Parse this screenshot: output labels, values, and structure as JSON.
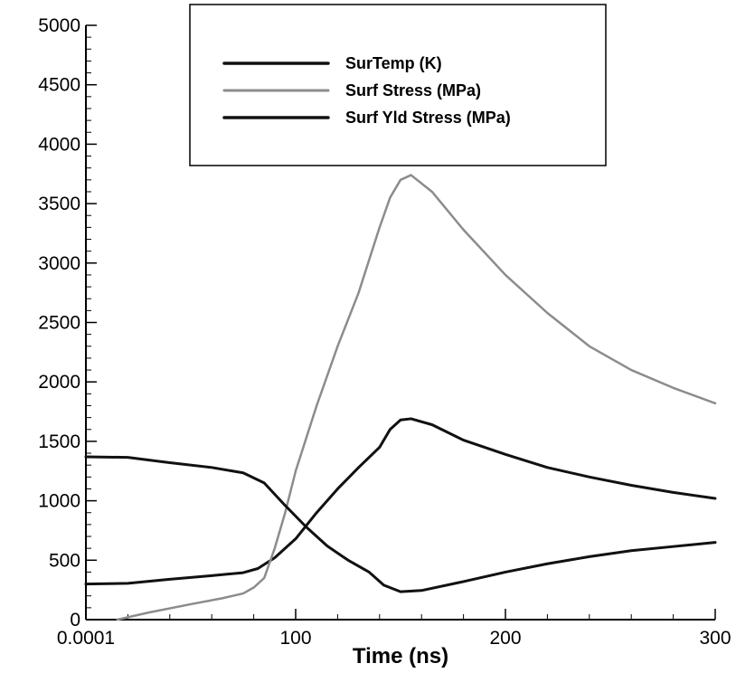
{
  "chart_data": {
    "type": "line",
    "xlabel": "Time (ns)",
    "ylabel": "",
    "xlim": [
      0.0001,
      300
    ],
    "ylim": [
      0,
      5000
    ],
    "x_ticks": [
      0.0001,
      100,
      200,
      300
    ],
    "x_tick_labels": [
      "0.0001",
      "100",
      "200",
      "300"
    ],
    "y_ticks": [
      0,
      500,
      1000,
      1500,
      2000,
      2500,
      3000,
      3500,
      4000,
      4500,
      5000
    ],
    "y_tick_labels": [
      "0",
      "500",
      "1000",
      "1500",
      "2000",
      "2500",
      "3000",
      "3500",
      "4000",
      "4500",
      "5000"
    ],
    "grid": false,
    "legend_position": "top-center",
    "series": [
      {
        "name": "SurTemp (K)",
        "color": "#111111",
        "points": [
          [
            0.0001,
            300
          ],
          [
            20,
            305
          ],
          [
            40,
            340
          ],
          [
            60,
            370
          ],
          [
            75,
            395
          ],
          [
            82,
            430
          ],
          [
            90,
            520
          ],
          [
            100,
            680
          ],
          [
            110,
            900
          ],
          [
            120,
            1100
          ],
          [
            130,
            1280
          ],
          [
            140,
            1450
          ],
          [
            145,
            1600
          ],
          [
            150,
            1680
          ],
          [
            155,
            1690
          ],
          [
            165,
            1640
          ],
          [
            180,
            1510
          ],
          [
            200,
            1390
          ],
          [
            220,
            1280
          ],
          [
            240,
            1200
          ],
          [
            260,
            1130
          ],
          [
            280,
            1070
          ],
          [
            300,
            1020
          ]
        ]
      },
      {
        "name": "Surf Stress (MPa)",
        "color": "#8c8c8c",
        "points": [
          [
            15,
            0
          ],
          [
            30,
            60
          ],
          [
            50,
            130
          ],
          [
            65,
            180
          ],
          [
            75,
            220
          ],
          [
            80,
            270
          ],
          [
            85,
            350
          ],
          [
            90,
            600
          ],
          [
            95,
            900
          ],
          [
            100,
            1250
          ],
          [
            110,
            1800
          ],
          [
            120,
            2300
          ],
          [
            130,
            2750
          ],
          [
            140,
            3300
          ],
          [
            145,
            3550
          ],
          [
            150,
            3700
          ],
          [
            155,
            3740
          ],
          [
            165,
            3600
          ],
          [
            180,
            3280
          ],
          [
            200,
            2900
          ],
          [
            220,
            2580
          ],
          [
            240,
            2300
          ],
          [
            260,
            2100
          ],
          [
            280,
            1950
          ],
          [
            300,
            1820
          ]
        ]
      },
      {
        "name": "Surf Yld Stress (MPa)",
        "color": "#111111",
        "points": [
          [
            0.0001,
            1370
          ],
          [
            20,
            1365
          ],
          [
            40,
            1320
          ],
          [
            60,
            1280
          ],
          [
            75,
            1235
          ],
          [
            85,
            1150
          ],
          [
            95,
            960
          ],
          [
            105,
            780
          ],
          [
            115,
            620
          ],
          [
            125,
            500
          ],
          [
            135,
            400
          ],
          [
            142,
            290
          ],
          [
            150,
            235
          ],
          [
            160,
            245
          ],
          [
            180,
            320
          ],
          [
            200,
            400
          ],
          [
            220,
            470
          ],
          [
            240,
            530
          ],
          [
            260,
            580
          ],
          [
            280,
            615
          ],
          [
            300,
            650
          ]
        ]
      }
    ]
  }
}
